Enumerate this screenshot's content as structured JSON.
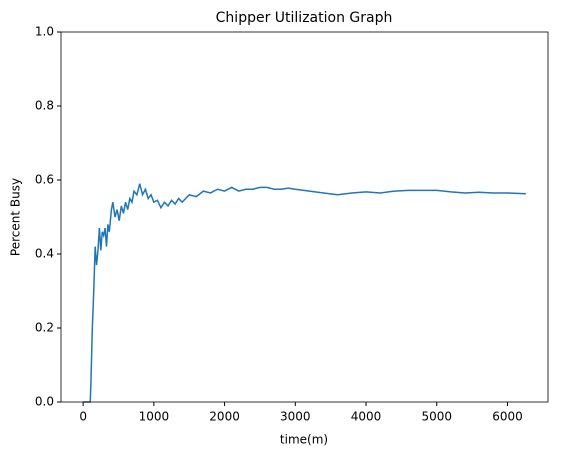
{
  "chart_data": {
    "type": "line",
    "title": "Chipper Utilization Graph",
    "x_label": "time(m)",
    "y_label": "Percent Busy",
    "x": [
      0,
      100,
      110,
      130,
      150,
      170,
      190,
      210,
      230,
      250,
      270,
      290,
      310,
      330,
      350,
      370,
      400,
      420,
      450,
      480,
      510,
      540,
      570,
      600,
      630,
      660,
      690,
      720,
      760,
      800,
      840,
      880,
      920,
      960,
      1000,
      1050,
      1100,
      1150,
      1200,
      1250,
      1300,
      1350,
      1400,
      1500,
      1600,
      1700,
      1800,
      1900,
      2000,
      2100,
      2200,
      2300,
      2400,
      2500,
      2600,
      2700,
      2800,
      2900,
      3000,
      3200,
      3400,
      3600,
      3800,
      4000,
      4200,
      4400,
      4600,
      4800,
      5000,
      5200,
      5400,
      5600,
      5800,
      6000,
      6260
    ],
    "series": [
      {
        "name": "Percent Busy",
        "color": "#1f77b4",
        "values": [
          0,
          0,
          0.05,
          0.2,
          0.3,
          0.42,
          0.37,
          0.41,
          0.47,
          0.41,
          0.46,
          0.45,
          0.47,
          0.42,
          0.48,
          0.46,
          0.52,
          0.54,
          0.5,
          0.52,
          0.49,
          0.53,
          0.51,
          0.54,
          0.52,
          0.55,
          0.54,
          0.57,
          0.56,
          0.59,
          0.56,
          0.575,
          0.55,
          0.56,
          0.54,
          0.545,
          0.525,
          0.54,
          0.53,
          0.545,
          0.535,
          0.55,
          0.54,
          0.56,
          0.555,
          0.57,
          0.565,
          0.575,
          0.57,
          0.58,
          0.57,
          0.575,
          0.575,
          0.58,
          0.58,
          0.575,
          0.575,
          0.578,
          0.575,
          0.57,
          0.565,
          0.56,
          0.565,
          0.568,
          0.565,
          0.57,
          0.572,
          0.572,
          0.572,
          0.568,
          0.565,
          0.567,
          0.565,
          0.565,
          0.563
        ]
      }
    ],
    "xlim": [
      -313,
      6573
    ],
    "xticks": [
      0,
      1000,
      2000,
      3000,
      4000,
      5000,
      6000
    ],
    "ylim": [
      0,
      1
    ],
    "yticks": [
      {
        "value": 0,
        "label": "0.0"
      },
      {
        "value": 0.2,
        "label": "0.2"
      },
      {
        "value": 0.4,
        "label": "0.4"
      },
      {
        "value": 0.6,
        "label": "0.6"
      },
      {
        "value": 0.8,
        "label": "0.8"
      },
      {
        "value": 1,
        "label": "1.0"
      }
    ],
    "grid": false
  }
}
